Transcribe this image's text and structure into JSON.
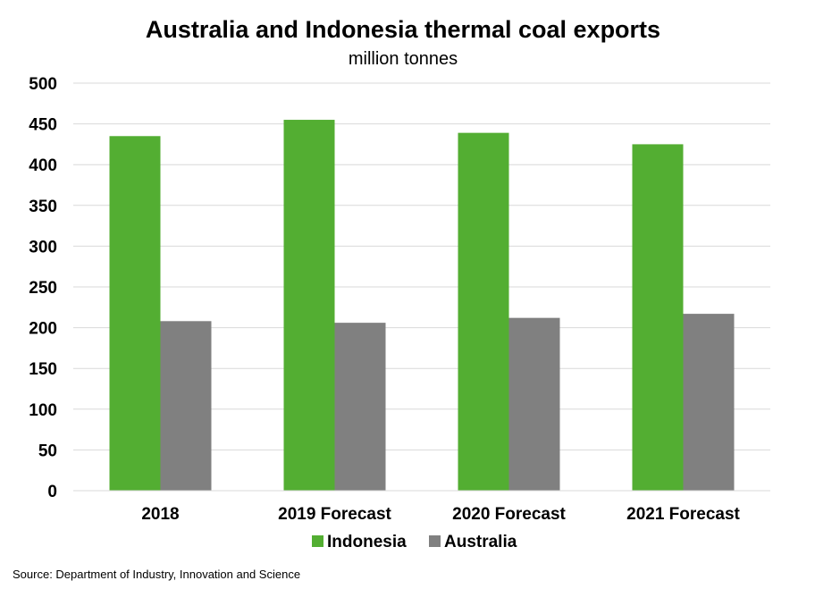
{
  "chart_data": {
    "type": "bar",
    "title": "Australia and Indonesia thermal coal exports",
    "subtitle": "million tonnes",
    "xlabel": "",
    "ylabel": "",
    "ylim": [
      0,
      500
    ],
    "yticks": [
      0,
      50,
      100,
      150,
      200,
      250,
      300,
      350,
      400,
      450,
      500
    ],
    "categories": [
      "2018",
      "2019 Forecast",
      "2020 Forecast",
      "2021 Forecast"
    ],
    "series": [
      {
        "name": "Indonesia",
        "color": "#53ae32",
        "values": [
          435,
          455,
          439,
          425
        ]
      },
      {
        "name": "Australia",
        "color": "#808080",
        "values": [
          208,
          206,
          212,
          217
        ]
      }
    ],
    "grid": true,
    "legend_position": "bottom",
    "source": "Source: Department of Industry, Innovation and Science"
  }
}
